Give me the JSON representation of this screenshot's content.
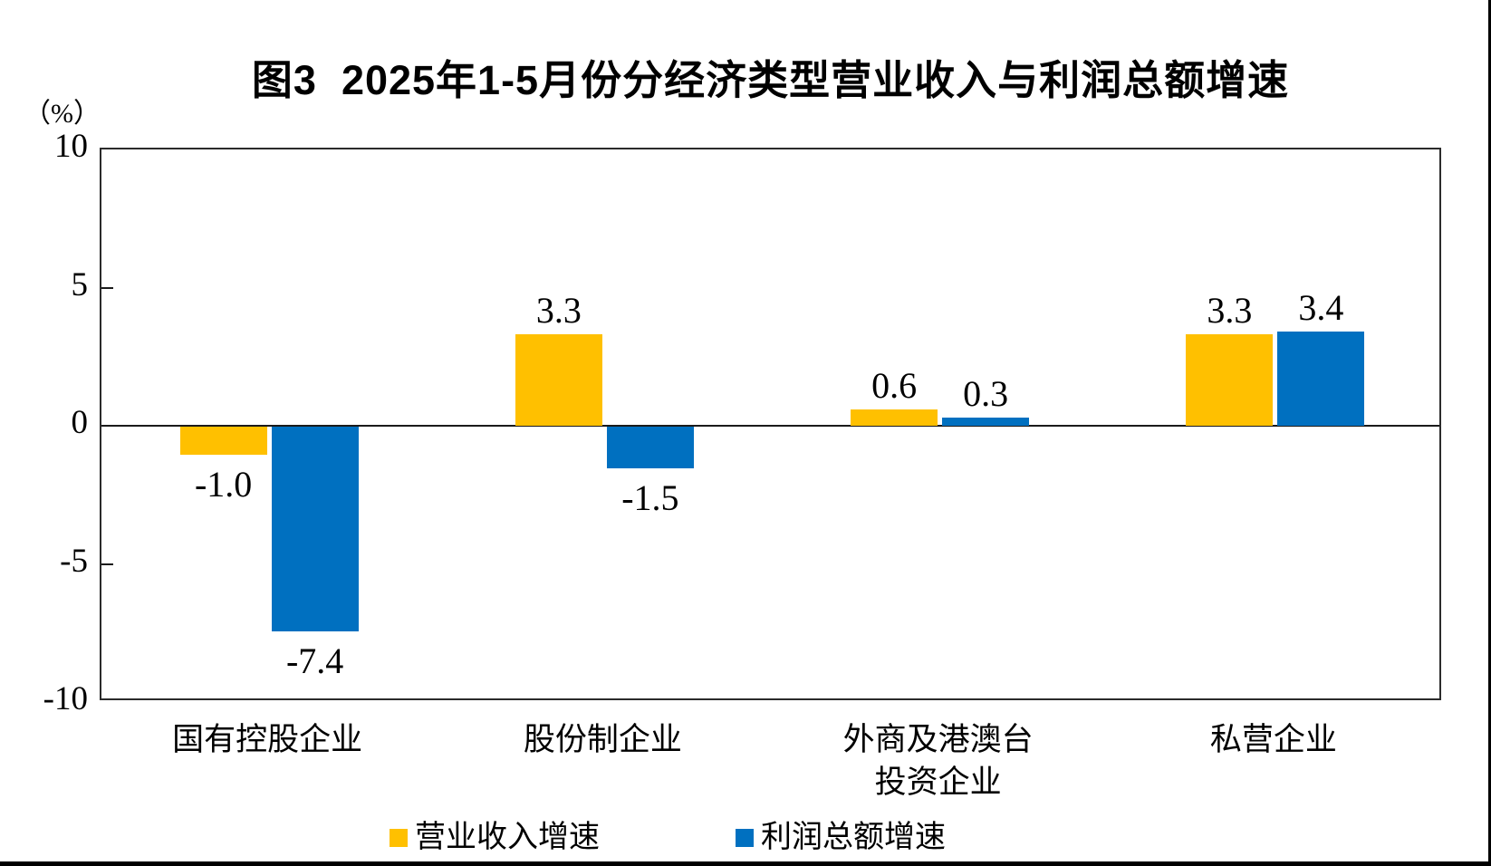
{
  "chart_data": {
    "type": "bar",
    "title": "图3  2025年1-5月份分经济类型营业收入与利润总额增速",
    "unit": "（%）",
    "categories": [
      "国有控股企业",
      "股份制企业",
      "外商及港澳台\n投资企业",
      "私营企业"
    ],
    "series": [
      {
        "name": "营业收入增速",
        "color": "#FFC000",
        "values": [
          -1.0,
          3.3,
          0.6,
          3.3
        ],
        "value_labels": [
          "-1.0",
          "3.3",
          "0.6",
          "3.3"
        ]
      },
      {
        "name": "利润总额增速",
        "color": "#0070C0",
        "values": [
          -7.4,
          -1.5,
          0.3,
          3.4
        ],
        "value_labels": [
          "-7.4",
          "-1.5",
          "0.3",
          "3.4"
        ]
      }
    ],
    "ylim": [
      -10,
      10
    ],
    "yticks": [
      10,
      5,
      0,
      -5,
      -10
    ],
    "grid": false,
    "zero_line": true,
    "data_labels": true,
    "legend_position": "bottom"
  },
  "colors": {
    "axis": "#1a1a1a",
    "text": "#000000",
    "page_border": "#000000"
  }
}
